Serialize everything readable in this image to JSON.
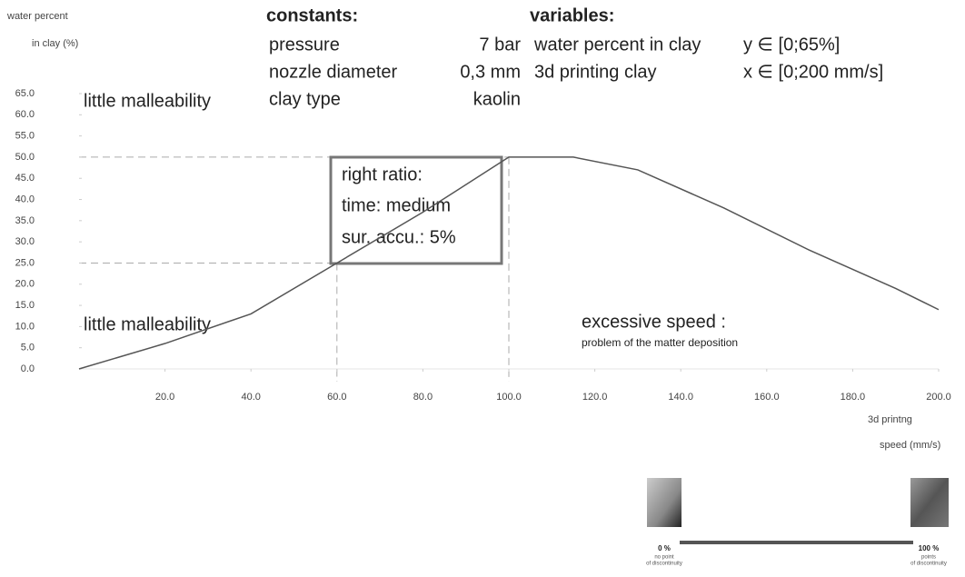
{
  "chart_data": {
    "type": "line",
    "y_label_lines": [
      "water percent",
      "in clay (%)"
    ],
    "x_label_lines": [
      "3d printng",
      "speed (mm/s)"
    ],
    "x": [
      0,
      20,
      40,
      60,
      80,
      100,
      115,
      130,
      150,
      170,
      190,
      200
    ],
    "series": [
      {
        "color": "#555555",
        "values": [
          0,
          6,
          13,
          25,
          37,
          50,
          50,
          47,
          38,
          28,
          19,
          14
        ]
      }
    ],
    "xlim": [
      0,
      200
    ],
    "ylim": [
      0,
      65
    ],
    "xticks": [
      {
        "value": 20,
        "label": "20.0"
      },
      {
        "value": 40,
        "label": "40.0"
      },
      {
        "value": 60,
        "label": "60.0"
      },
      {
        "value": 80,
        "label": "80.0"
      },
      {
        "value": 100,
        "label": "100.0"
      },
      {
        "value": 120,
        "label": "120.0"
      },
      {
        "value": 140,
        "label": "140.0"
      },
      {
        "value": 160,
        "label": "160.0"
      },
      {
        "value": 180,
        "label": "180.0"
      },
      {
        "value": 200,
        "label": "200.0"
      }
    ],
    "yticks": [
      {
        "value": 0,
        "label": "0.0"
      },
      {
        "value": 5,
        "label": "5.0"
      },
      {
        "value": 10,
        "label": "10.0"
      },
      {
        "value": 15,
        "label": "15.0"
      },
      {
        "value": 20,
        "label": "20.0"
      },
      {
        "value": 25,
        "label": "25.0"
      },
      {
        "value": 30,
        "label": "30.0"
      },
      {
        "value": 35,
        "label": "35.0"
      },
      {
        "value": 40,
        "label": "40.0"
      },
      {
        "value": 45,
        "label": "45.0"
      },
      {
        "value": 50,
        "label": "50.0"
      },
      {
        "value": 55,
        "label": "55.0"
      },
      {
        "value": 60,
        "label": "60.0"
      },
      {
        "value": 65,
        "label": "65.0"
      }
    ],
    "reference_points": [
      {
        "x": 60,
        "y": 25
      },
      {
        "x": 100,
        "y": 50
      }
    ],
    "annotations": {
      "top_zone": "little malleability",
      "bottom_zone": "little malleability",
      "excess_title": "excessive speed :",
      "excess_note": "problem of the matter deposition",
      "box_lines": [
        "right ratio:",
        "time: medium",
        "sur. accu.: 5%"
      ]
    },
    "constants": {
      "title": "constants:",
      "rows": [
        [
          "pressure",
          "7 bar"
        ],
        [
          "nozzle diameter",
          "0,3 mm"
        ],
        [
          "clay type",
          "kaolin"
        ]
      ]
    },
    "variables": {
      "title": "variables:",
      "rows": [
        [
          "water percent in clay",
          "y ∈ [0;65%]"
        ],
        [
          "3d printing clay",
          "x ∈ [0;200 mm/s]"
        ]
      ]
    },
    "discontinuity_scale": {
      "left": {
        "label": "0 %",
        "note_lines": [
          "no point",
          "of discontinuity"
        ]
      },
      "right": {
        "label": "100 %",
        "note_lines": [
          "points",
          "of discontinuity"
        ]
      }
    }
  }
}
